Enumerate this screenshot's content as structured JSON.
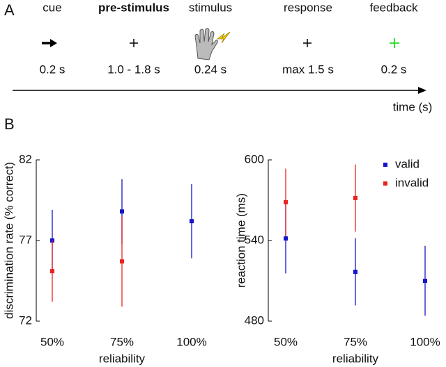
{
  "timeline": {
    "label": "A",
    "axis_label": "time (s)",
    "phases": [
      {
        "name": "cue",
        "duration": "0.2 s",
        "bold": false
      },
      {
        "name": "pre-stimulus",
        "duration": "1.0 - 1.8 s",
        "bold": true
      },
      {
        "name": "stimulus",
        "duration": "0.24 s",
        "bold": false
      },
      {
        "name": "response",
        "duration": "max 1.5 s",
        "bold": false
      },
      {
        "name": "feedback",
        "duration": "0.2 s",
        "bold": false
      }
    ]
  },
  "panel_b_label": "B",
  "chart_data": [
    {
      "type": "errorbar",
      "ylabel": "discrimination rate (% correct)",
      "xlabel": "reliability",
      "categories": [
        "50%",
        "75%",
        "100%"
      ],
      "ylim": [
        72,
        82
      ],
      "yticks": [
        72,
        77,
        82
      ],
      "series": [
        {
          "name": "valid",
          "color": "#1414c8",
          "values": [
            77.0,
            78.8,
            78.2
          ],
          "errors": [
            1.9,
            2.0,
            2.3
          ]
        },
        {
          "name": "invalid",
          "color": "#e8231f",
          "values": [
            75.1,
            75.7,
            null
          ],
          "errors": [
            1.9,
            2.8,
            null
          ]
        }
      ]
    },
    {
      "type": "errorbar",
      "ylabel": "reaction time (ms)",
      "xlabel": "reliability",
      "legend": "upper right",
      "categories": [
        "50%",
        "75%",
        "100%"
      ],
      "ylim": [
        480,
        600
      ],
      "yticks": [
        480,
        540,
        600
      ],
      "series": [
        {
          "name": "valid",
          "color": "#1414c8",
          "values": [
            541.5,
            516.7,
            510
          ],
          "errors": [
            26,
            25,
            26
          ]
        },
        {
          "name": "invalid",
          "color": "#e8231f",
          "values": [
            568.5,
            571.6,
            null
          ],
          "errors": [
            25,
            25,
            null
          ]
        }
      ]
    }
  ]
}
